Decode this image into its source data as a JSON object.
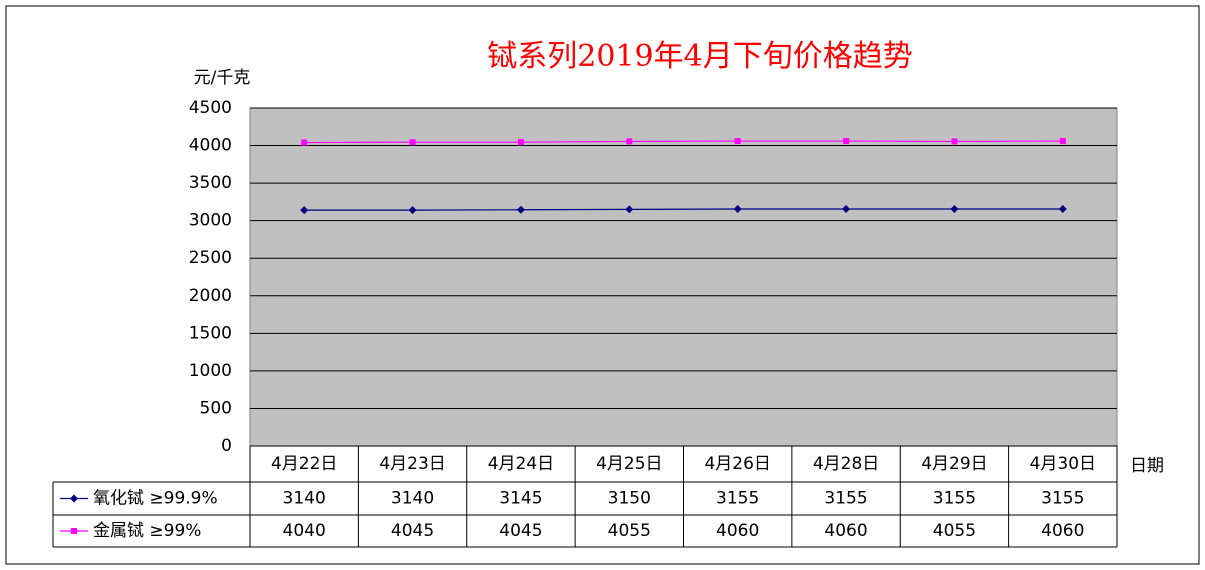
{
  "chart_data": {
    "type": "line",
    "title": "铽系列2019年4月下旬价格趋势",
    "y_label": "元/千克",
    "x_label": "日期",
    "categories": [
      "4月22日",
      "4月23日",
      "4月24日",
      "4月25日",
      "4月26日",
      "4月28日",
      "4月29日",
      "4月30日"
    ],
    "series": [
      {
        "name": "氧化铽 ≥99.9%",
        "color": "#000080",
        "marker": "diamond",
        "values": [
          3140,
          3140,
          3145,
          3150,
          3155,
          3155,
          3155,
          3155
        ]
      },
      {
        "name": "金属铽 ≥99%",
        "color": "#ff00ff",
        "marker": "square",
        "values": [
          4040,
          4045,
          4045,
          4055,
          4060,
          4060,
          4055,
          4060
        ]
      }
    ],
    "ylim": [
      0,
      4500
    ],
    "yticks": [
      0,
      500,
      1000,
      1500,
      2000,
      2500,
      3000,
      3500,
      4000,
      4500
    ],
    "grid": true
  }
}
